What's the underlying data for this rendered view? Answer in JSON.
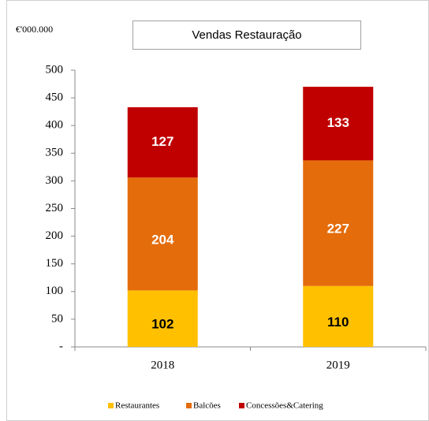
{
  "chart_data": {
    "type": "bar",
    "stacked": true,
    "title": "Vendas Restauração",
    "unit_label": "€'000.000",
    "categories": [
      "2018",
      "2019"
    ],
    "series": [
      {
        "name": "Restaurantes",
        "color": "#FFC000",
        "values": [
          102,
          110
        ]
      },
      {
        "name": "Balcões",
        "color": "#E46C0A",
        "values": [
          204,
          227
        ]
      },
      {
        "name": "Concessões&Catering",
        "color": "#C00000",
        "values": [
          127,
          133
        ]
      }
    ],
    "ylim": [
      0,
      500
    ],
    "yticks": [
      {
        "value": 0,
        "label": "-"
      },
      50,
      100,
      150,
      200,
      250,
      300,
      350,
      400,
      450,
      500
    ],
    "legend": "bottom"
  }
}
